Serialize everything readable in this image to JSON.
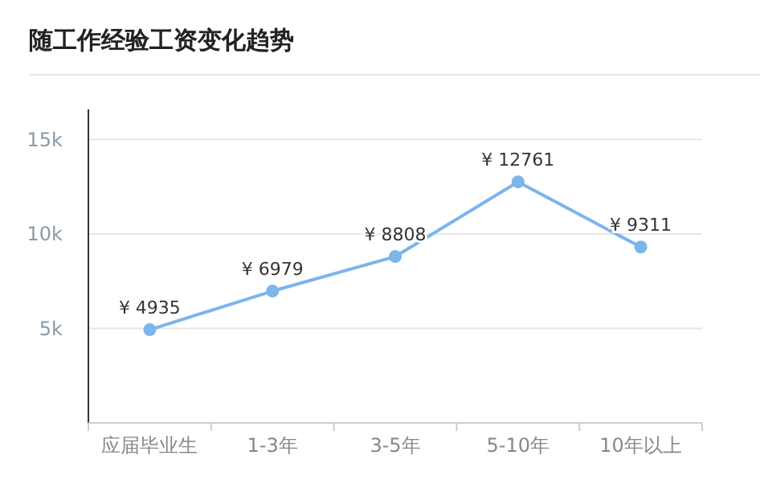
{
  "chart_data": {
    "type": "line",
    "title": "随工作经验工资变化趋势",
    "categories": [
      "应届毕业生",
      "1-3年",
      "3-5年",
      "5-10年",
      "10年以上"
    ],
    "series": [
      {
        "color": "#7cb5ec",
        "values": [
          4935,
          6979,
          8808,
          12761,
          9311
        ],
        "value_labels": [
          "¥ 4935",
          "¥ 6979",
          "¥ 8808",
          "¥ 12761",
          "¥ 9311"
        ]
      }
    ],
    "ylim": [
      0,
      16600
    ],
    "yticks": [
      {
        "value": 5000,
        "label": "5k"
      },
      {
        "value": 10000,
        "label": "10k"
      },
      {
        "value": 15000,
        "label": "15k"
      }
    ],
    "grid": "y",
    "marker": "circle",
    "line_style": "solid"
  }
}
